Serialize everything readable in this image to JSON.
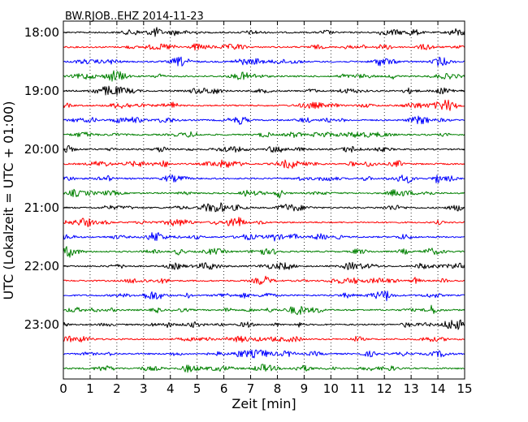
{
  "chart_data": {
    "type": "line",
    "title": "BW.RJOB..EHZ 2014-11-23",
    "xlabel": "Zeit  [min]",
    "ylabel": "UTC (Lokalzeit = UTC + 01:00)",
    "xlim": [
      0,
      15
    ],
    "x_ticks": [
      "0",
      "1",
      "2",
      "3",
      "4",
      "5",
      "6",
      "7",
      "8",
      "9",
      "10",
      "11",
      "12",
      "13",
      "14",
      "15"
    ],
    "y_ticks": [
      "18:00",
      "19:00",
      "20:00",
      "21:00",
      "22:00",
      "23:00"
    ],
    "grid": "vertical dotted lines at each minute",
    "trace_interval_minutes": 15,
    "trace_start": "18:00",
    "trace_count": 24,
    "color_cycle": [
      "#000000",
      "#ff0000",
      "#0000ff",
      "#008000"
    ]
  }
}
